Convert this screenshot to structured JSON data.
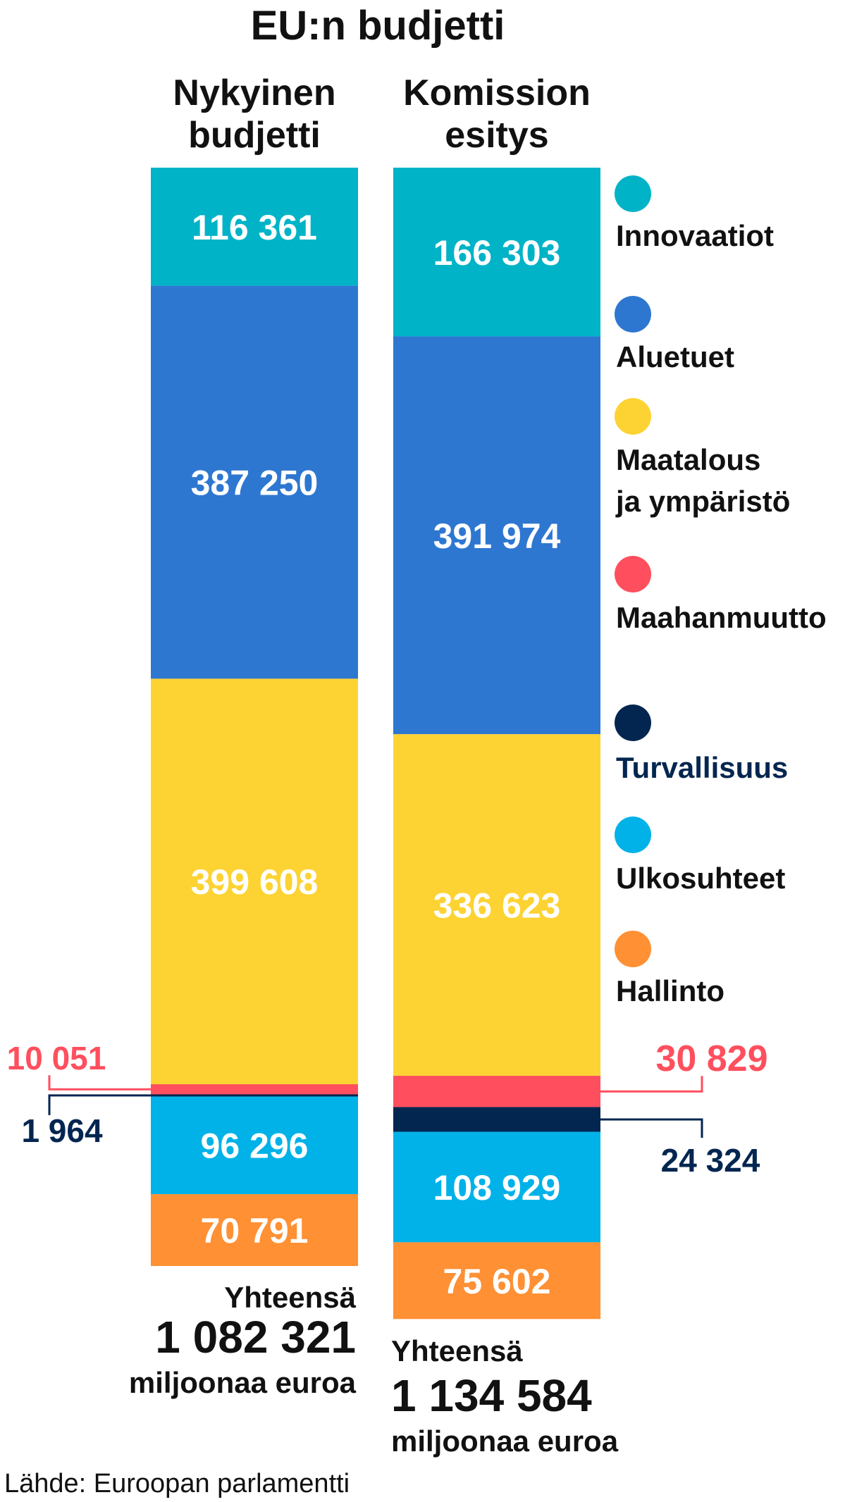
{
  "chart_data": {
    "type": "bar",
    "title": "EU:n budjetti",
    "categories": [
      "Nykyinen budjetti",
      "Komission esitys"
    ],
    "category_lines": [
      [
        "Nykyinen",
        "budjetti"
      ],
      [
        "Komission",
        "esitys"
      ]
    ],
    "series": [
      {
        "name": "Innovaatiot",
        "values": [
          116361,
          166303
        ],
        "labels": [
          "116 361",
          "166 303"
        ],
        "color": "#00b3c7"
      },
      {
        "name": "Aluetuet",
        "values": [
          387250,
          391974
        ],
        "labels": [
          "387 250",
          "391 974"
        ],
        "color": "#2e77d1"
      },
      {
        "name": "Maatalous ja ympäristö",
        "legend_lines": [
          "Maatalous",
          "ja ympäristö"
        ],
        "values": [
          399608,
          336623
        ],
        "labels": [
          "399 608",
          "336 623"
        ],
        "color": "#fdd333"
      },
      {
        "name": "Maahanmuutto",
        "values": [
          10051,
          30829
        ],
        "labels": [
          "10 051",
          "30 829"
        ],
        "color": "#ff4f5e"
      },
      {
        "name": "Turvallisuus",
        "values": [
          1964,
          24324
        ],
        "labels": [
          "1 964",
          "24 324"
        ],
        "color": "#032650"
      },
      {
        "name": "Ulkosuhteet",
        "values": [
          96296,
          108929
        ],
        "labels": [
          "96 296",
          "108 929"
        ],
        "color": "#00b2e8"
      },
      {
        "name": "Hallinto",
        "values": [
          70791,
          75602
        ],
        "labels": [
          "70 791",
          "75 602"
        ],
        "color": "#ff9034"
      }
    ],
    "totals": [
      {
        "label": "Yhteensä",
        "value": "1 082 321",
        "unit": "miljoonaa euroa"
      },
      {
        "label": "Yhteensä",
        "value": "1 134 584",
        "unit": "miljoonaa euroa"
      }
    ],
    "legend_placement": "right",
    "grid": false,
    "source": "Lähde: Euroopan parlamentti"
  }
}
